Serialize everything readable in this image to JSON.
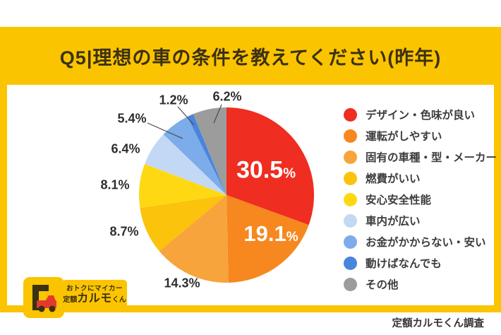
{
  "header": {
    "title": "Q5|理想の車の条件を教えてください(昨年)"
  },
  "source_note": "定額カルモくん調査",
  "logo": {
    "line1": "おトクにマイカー",
    "line2_prefix": "定額",
    "line2_main": "カルモ",
    "line2_suffix": "くん",
    "icon": "red-truck-icon"
  },
  "colors": {
    "brand_yellow": "#FBC400",
    "title_text": "#3B3113",
    "label_text": "#2E2E2E",
    "inside_label_text": "#FFFFFF"
  },
  "chart_data": {
    "type": "pie",
    "title": "Q5|理想の車の条件を教えてください(昨年)",
    "units": "%",
    "start_angle_deg": 0,
    "direction": "clockwise",
    "legend_position": "right",
    "slices": [
      {
        "label": "デザイン・色味が良い",
        "value": 30.5,
        "color": "#EF2D20",
        "label_style": "inside"
      },
      {
        "label": "運転がしやすい",
        "value": 19.1,
        "color": "#F6881F",
        "label_style": "inside"
      },
      {
        "label": "固有の車種・型・メーカー",
        "value": 14.3,
        "color": "#F8A43C",
        "label_style": "outside"
      },
      {
        "label": "燃費がいい",
        "value": 8.7,
        "color": "#FBC30B",
        "label_style": "outside"
      },
      {
        "label": "安心安全性能",
        "value": 8.1,
        "color": "#FFD814",
        "label_style": "outside"
      },
      {
        "label": "車内が広い",
        "value": 6.4,
        "color": "#C3D8F4",
        "label_style": "outside"
      },
      {
        "label": "お金がかからない・安い",
        "value": 5.4,
        "color": "#7CACE9",
        "label_style": "outside"
      },
      {
        "label": "動けばなんでも",
        "value": 1.2,
        "color": "#4A85DC",
        "label_style": "outside"
      },
      {
        "label": "その他",
        "value": 6.2,
        "color": "#9C9C9C",
        "label_style": "outside"
      }
    ]
  }
}
